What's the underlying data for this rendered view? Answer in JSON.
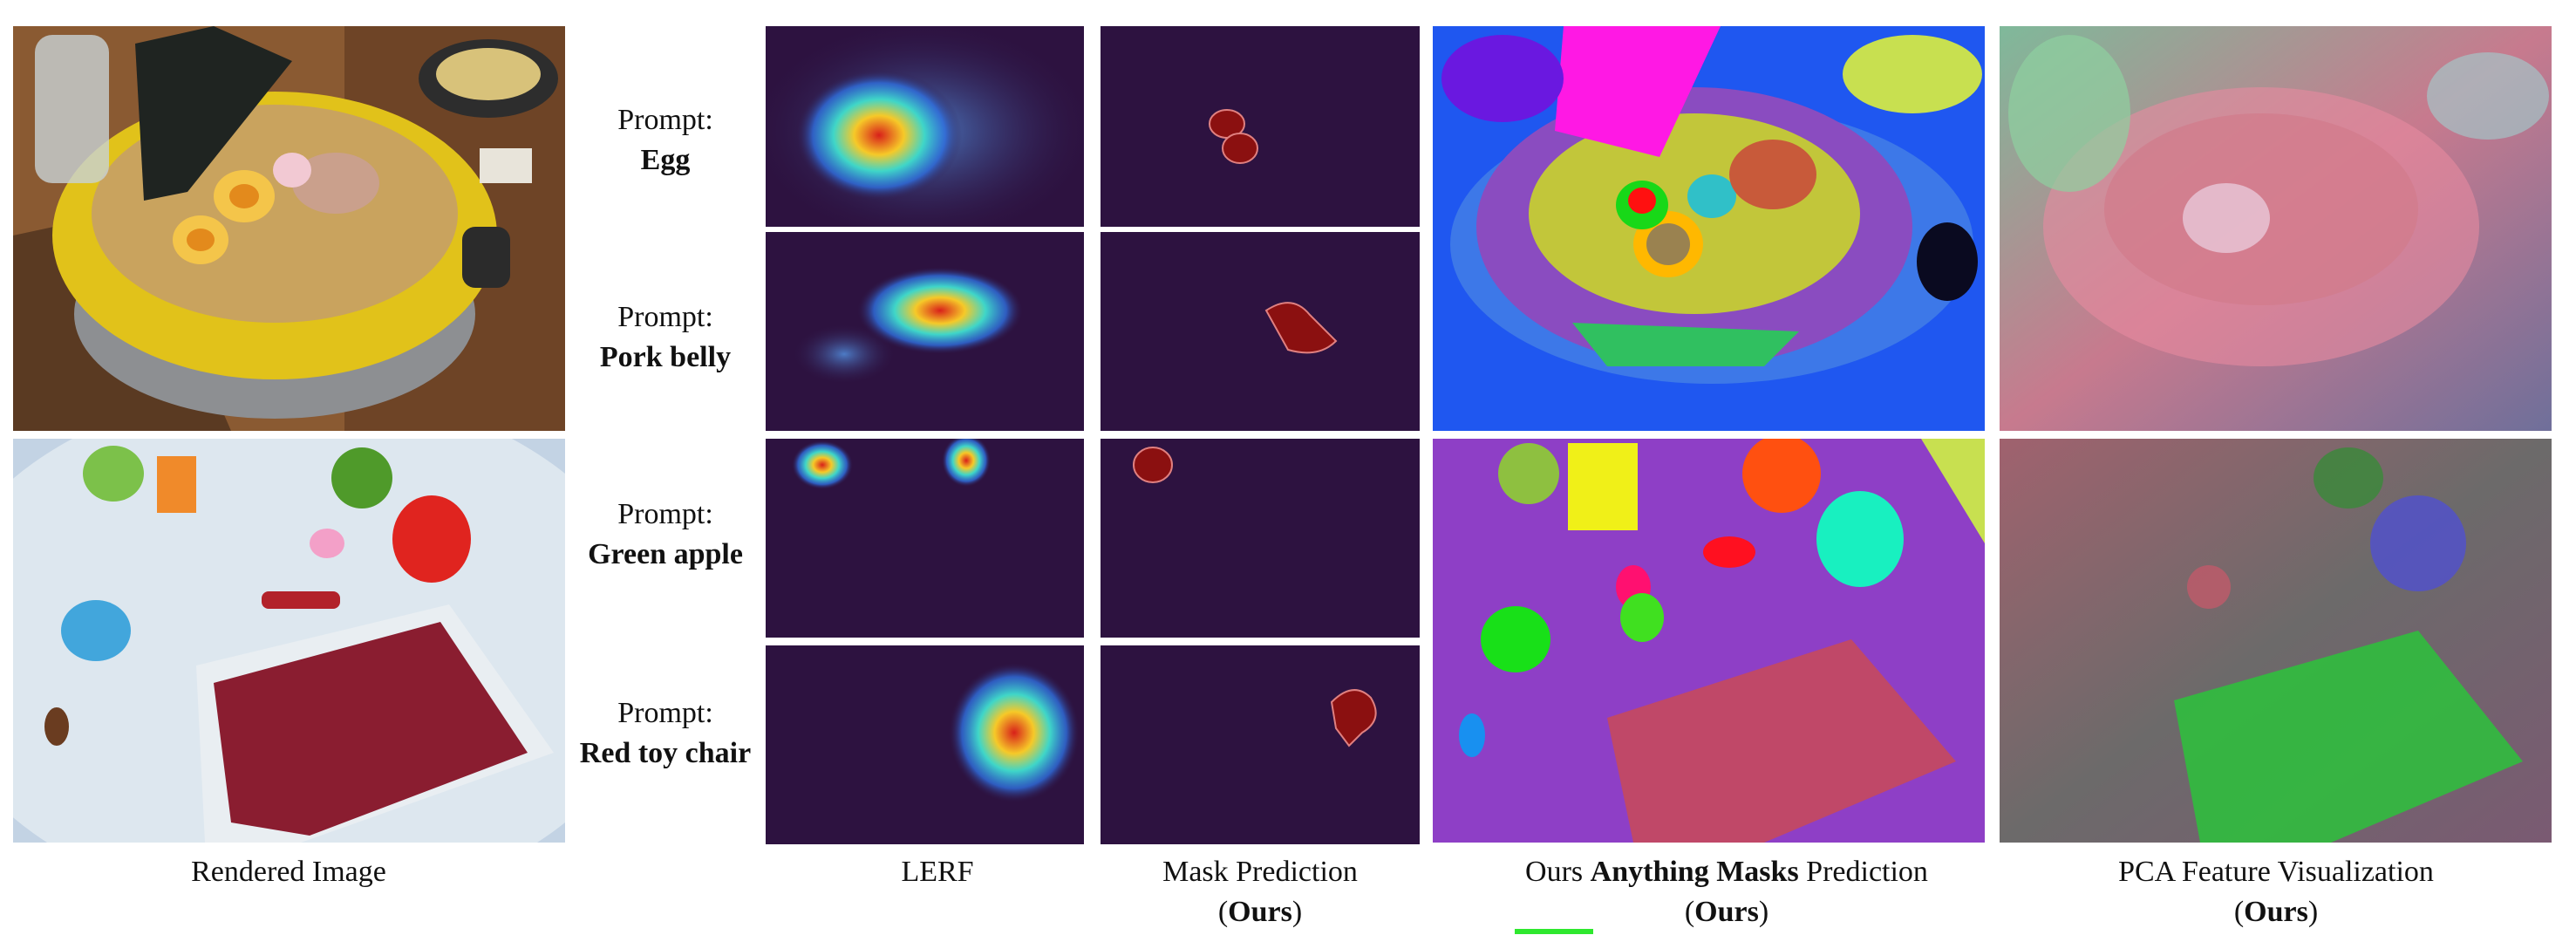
{
  "figure": {
    "prompts": [
      {
        "label": "Prompt:",
        "name": "Egg"
      },
      {
        "label": "Prompt:",
        "name": "Pork belly"
      },
      {
        "label": "Prompt:",
        "name": "Green apple"
      },
      {
        "label": "Prompt:",
        "name": "Red toy chair"
      }
    ],
    "captions": {
      "rendered": "Rendered Image",
      "lerf": "LERF",
      "mask": {
        "title": "Mask Prediction",
        "note": "Ours"
      },
      "anything": {
        "before": "Ours",
        "bold": "Anything Masks",
        "after": "Prediction",
        "note": "Ours"
      },
      "pca": {
        "title": "PCA Feature Visualization",
        "note": "Ours"
      }
    }
  }
}
